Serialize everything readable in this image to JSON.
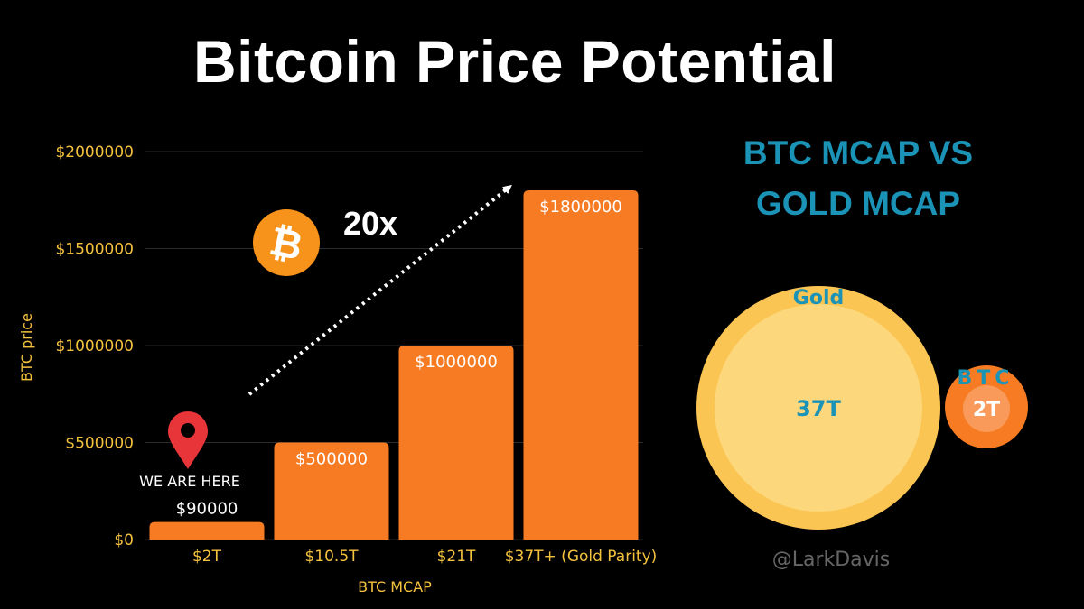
{
  "title": "Bitcoin Price Potential",
  "chart_data": {
    "type": "bar",
    "title": "Bitcoin Price Potential",
    "categories": [
      "$2T",
      "$10.5T",
      "$21T",
      "$37T+ (Gold Parity)"
    ],
    "values": [
      90000,
      500000,
      1000000,
      1800000
    ],
    "value_labels": [
      "$90000",
      "$500000",
      "$1000000",
      "$1800000"
    ],
    "xlabel": "BTC MCAP",
    "ylabel": "BTC price",
    "ylim": [
      0,
      2000000
    ],
    "y_ticks": [
      0,
      500000,
      1000000,
      1500000,
      2000000
    ],
    "y_tick_labels": [
      "$0",
      "$500000",
      "$1000000",
      "$1500000",
      "$2000000"
    ],
    "grid": true,
    "annotations": {
      "location_marker": "WE ARE HERE",
      "multiplier": "20x",
      "bitcoin_symbol": "₿"
    }
  },
  "comparison": {
    "title_line1": "BTC MCAP VS",
    "title_line2": "GOLD MCAP",
    "gold": {
      "label": "Gold",
      "value": "37T",
      "color": "#fbc553"
    },
    "btc": {
      "label": "BTC",
      "value": "2T",
      "color": "#f77b22"
    }
  },
  "handle": "@LarkDavis",
  "colors": {
    "bar": "#f77b22",
    "axis_text": "#f5c23e",
    "accent_blue": "#1a93b6",
    "pin": "#e8353a"
  },
  "icons": [
    "bitcoin-logo-icon",
    "location-pin-icon",
    "dotted-arrow-icon"
  ]
}
